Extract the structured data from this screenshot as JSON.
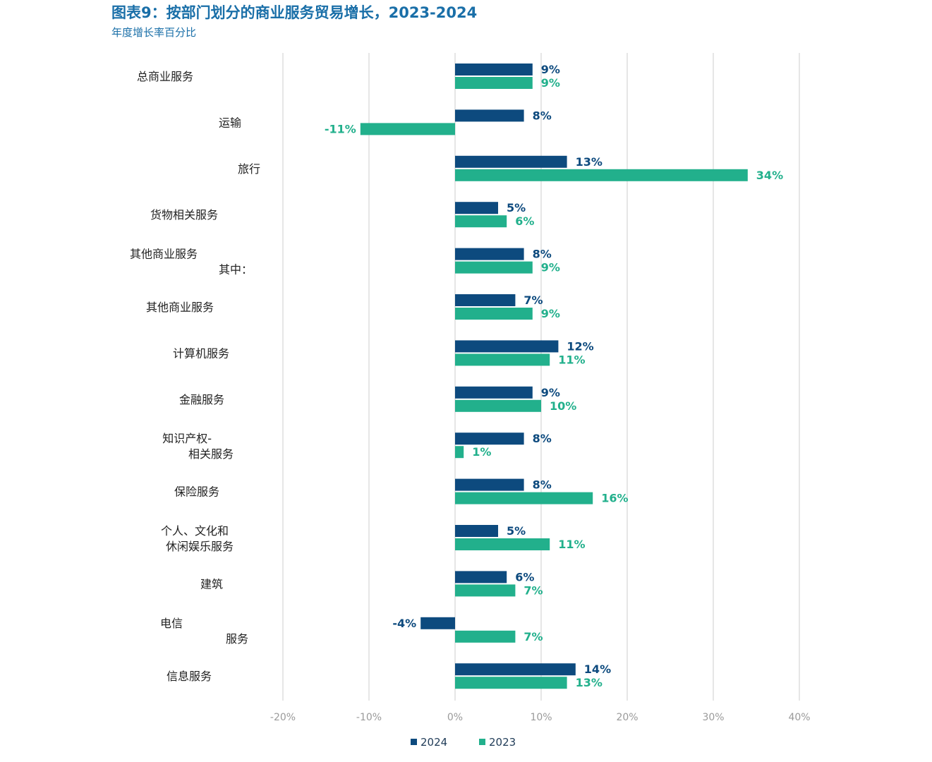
{
  "title": "图表9：按部门划分的商业服务贸易增长，2023-2024",
  "subtitle": "年度增长率百分比",
  "colors": {
    "s2024": "#0d4a7e",
    "s2023": "#22b08c",
    "grid": "#cccccc",
    "tick": "#9a9a9a"
  },
  "chart_data": {
    "type": "bar",
    "orientation": "horizontal",
    "title": "图表9：按部门划分的商业服务贸易增长，2023-2024",
    "subtitle": "年度增长率百分比",
    "xlim": [
      -20,
      40
    ],
    "xticks": [
      -20,
      -10,
      0,
      10,
      20,
      30,
      40
    ],
    "xtick_labels": [
      "-20%",
      "-10%",
      "0%",
      "10%",
      "20%",
      "30%",
      "40%"
    ],
    "grid": true,
    "legend_position": "bottom",
    "categories": [
      [
        "总商业服务"
      ],
      [
        "运输"
      ],
      [
        "旅行"
      ],
      [
        "货物相关服务"
      ],
      [
        "其他商业服务",
        "其中："
      ],
      [
        "其他商业服务"
      ],
      [
        "计算机服务"
      ],
      [
        "金融服务"
      ],
      [
        "知识产权-",
        "相关服务"
      ],
      [
        "保险服务"
      ],
      [
        "个人、文化和",
        "休闲娱乐服务"
      ],
      [
        "建筑"
      ],
      [
        "电信",
        "服务"
      ],
      [
        "信息服务"
      ]
    ],
    "series": [
      {
        "name": "2024",
        "values": [
          9,
          8,
          13,
          5,
          8,
          7,
          12,
          9,
          8,
          8,
          5,
          6,
          -4,
          14
        ],
        "labels": [
          "9%",
          "8%",
          "13%",
          "5%",
          "8%",
          "7%",
          "12%",
          "9%",
          "8%",
          "8%",
          "5%",
          "6%",
          "-4%",
          "14%"
        ]
      },
      {
        "name": "2023",
        "values": [
          9,
          -11,
          34,
          6,
          9,
          9,
          11,
          10,
          1,
          16,
          11,
          7,
          7,
          13
        ],
        "labels": [
          "9%",
          "-11%",
          "34%",
          "6%",
          "9%",
          "9%",
          "11%",
          "10%",
          "1%",
          "16%",
          "11%",
          "7%",
          "7%",
          "13%"
        ]
      }
    ]
  }
}
